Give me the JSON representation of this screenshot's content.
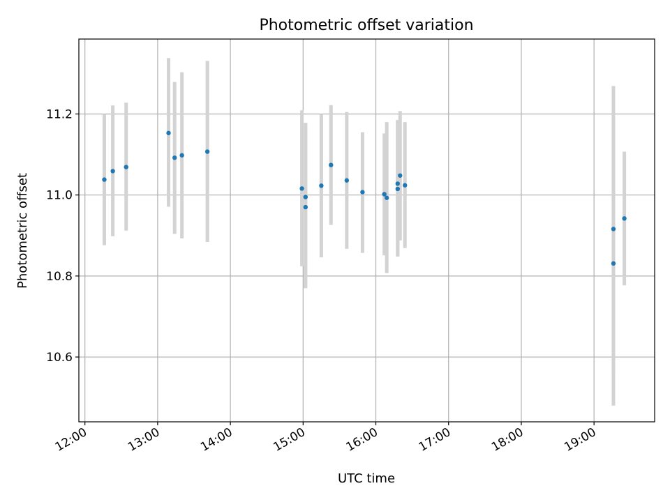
{
  "chart_data": {
    "type": "scatter",
    "title": "Photometric offset variation",
    "xlabel": "UTC time",
    "ylabel": "Photometric offset",
    "x_axis_type": "time",
    "xlim": [
      "11:55",
      "19:50"
    ],
    "ylim": [
      10.44,
      11.385
    ],
    "x_ticks": [
      "12:00",
      "13:00",
      "14:00",
      "15:00",
      "16:00",
      "17:00",
      "18:00",
      "19:00"
    ],
    "y_ticks": [
      "10.6",
      "10.8",
      "11.0",
      "11.2"
    ],
    "grid": true,
    "legend": "none",
    "point_color": "#1f77b4",
    "errorbar_color": "#d3d3d3",
    "points": [
      {
        "x": "12:16",
        "y": 11.038,
        "ylow": 10.876,
        "yhigh": 11.2
      },
      {
        "x": "12:23",
        "y": 11.059,
        "ylow": 10.898,
        "yhigh": 11.221
      },
      {
        "x": "12:34",
        "y": 11.069,
        "ylow": 10.912,
        "yhigh": 11.228
      },
      {
        "x": "13:09",
        "y": 11.153,
        "ylow": 10.971,
        "yhigh": 11.338
      },
      {
        "x": "13:14",
        "y": 11.092,
        "ylow": 10.904,
        "yhigh": 11.279
      },
      {
        "x": "13:20",
        "y": 11.098,
        "ylow": 10.893,
        "yhigh": 11.303
      },
      {
        "x": "13:41",
        "y": 11.107,
        "ylow": 10.884,
        "yhigh": 11.331
      },
      {
        "x": "14:59",
        "y": 11.016,
        "ylow": 10.824,
        "yhigh": 11.209
      },
      {
        "x": "15:02",
        "y": 10.97,
        "ylow": 10.77,
        "yhigh": 11.178
      },
      {
        "x": "15:02",
        "y": 10.995,
        "ylow": 10.77,
        "yhigh": 11.178
      },
      {
        "x": "15:15",
        "y": 11.023,
        "ylow": 10.846,
        "yhigh": 11.2
      },
      {
        "x": "15:23",
        "y": 11.074,
        "ylow": 10.926,
        "yhigh": 11.222
      },
      {
        "x": "15:36",
        "y": 11.036,
        "ylow": 10.867,
        "yhigh": 11.205
      },
      {
        "x": "15:49",
        "y": 11.007,
        "ylow": 10.857,
        "yhigh": 11.155
      },
      {
        "x": "16:07",
        "y": 11.002,
        "ylow": 10.851,
        "yhigh": 11.152
      },
      {
        "x": "16:09",
        "y": 10.993,
        "ylow": 10.807,
        "yhigh": 11.18
      },
      {
        "x": "16:18",
        "y": 11.015,
        "ylow": 10.848,
        "yhigh": 11.185
      },
      {
        "x": "16:18",
        "y": 11.028,
        "ylow": 10.848,
        "yhigh": 11.185
      },
      {
        "x": "16:20",
        "y": 11.048,
        "ylow": 10.888,
        "yhigh": 11.207
      },
      {
        "x": "16:24",
        "y": 11.024,
        "ylow": 10.869,
        "yhigh": 11.18
      },
      {
        "x": "19:16",
        "y": 10.916,
        "ylow": 10.565,
        "yhigh": 11.269
      },
      {
        "x": "19:16",
        "y": 10.831,
        "ylow": 10.48,
        "yhigh": 11.185
      },
      {
        "x": "19:25",
        "y": 10.942,
        "ylow": 10.777,
        "yhigh": 11.107
      }
    ]
  }
}
